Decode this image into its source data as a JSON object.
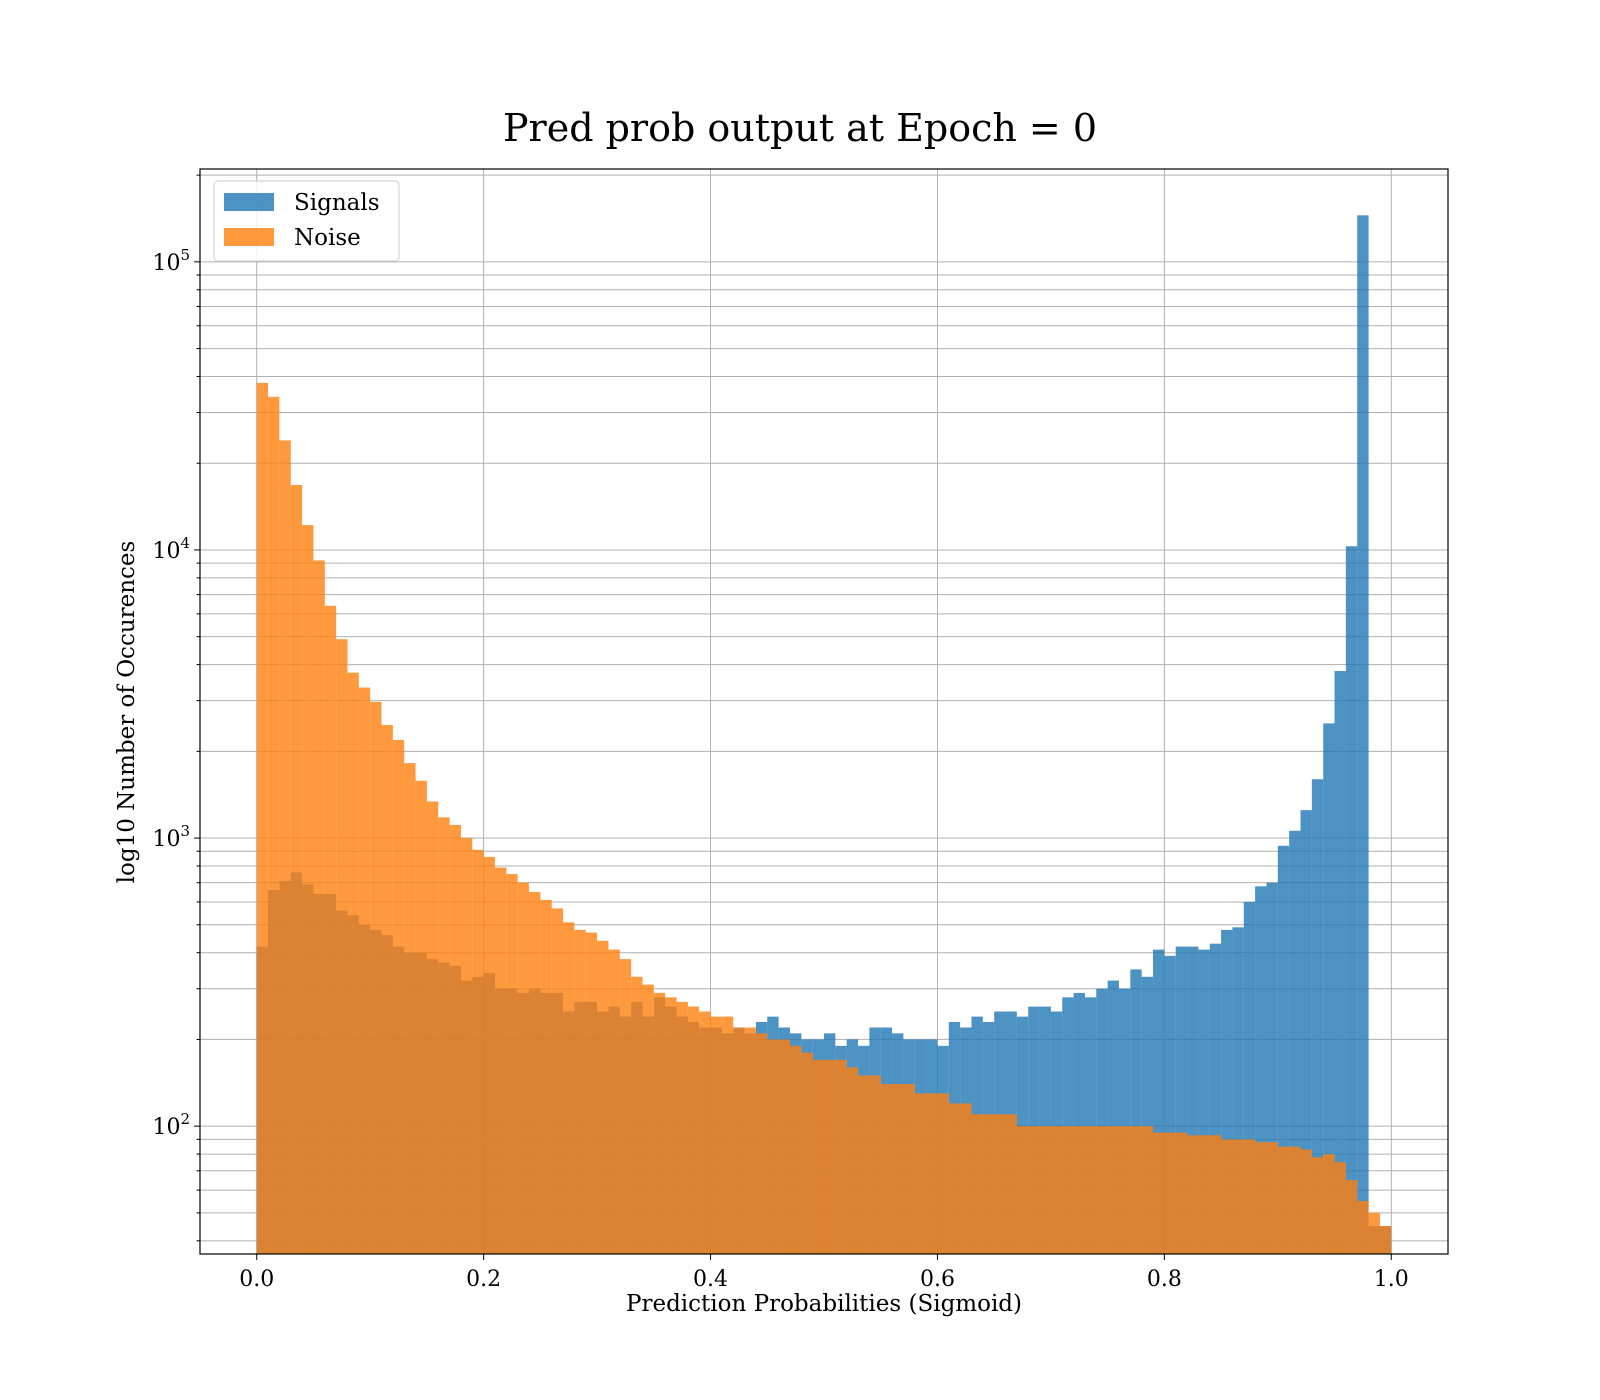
{
  "chart_data": {
    "type": "bar",
    "title": "Pred prob output at Epoch = 0",
    "xlabel": "Prediction Probabilities (Sigmoid)",
    "ylabel": "log10 Number of Occurences",
    "x_scale": "linear",
    "y_scale": "log",
    "xlim": [
      -0.05,
      1.05
    ],
    "ylim": [
      36,
      210000
    ],
    "grid": true,
    "legend_placement": "top-left",
    "bins": {
      "start": 0.0,
      "end": 1.0,
      "count": 100
    },
    "x_ticks": [
      {
        "value": 0.0,
        "label": "0.0"
      },
      {
        "value": 0.2,
        "label": "0.2"
      },
      {
        "value": 0.4,
        "label": "0.4"
      },
      {
        "value": 0.6,
        "label": "0.6"
      },
      {
        "value": 0.8,
        "label": "0.8"
      },
      {
        "value": 1.0,
        "label": "1.0"
      }
    ],
    "y_ticks": [
      {
        "value": 100,
        "base": "10",
        "exp": "2"
      },
      {
        "value": 1000,
        "base": "10",
        "exp": "3"
      },
      {
        "value": 10000,
        "base": "10",
        "exp": "4"
      },
      {
        "value": 100000,
        "base": "10",
        "exp": "5"
      }
    ],
    "series": [
      {
        "name": "Signals",
        "color": "#1f77b4",
        "opacity": 0.8,
        "values": [
          420,
          660,
          710,
          760,
          690,
          640,
          640,
          560,
          540,
          500,
          480,
          460,
          420,
          400,
          400,
          380,
          370,
          360,
          320,
          330,
          340,
          300,
          300,
          290,
          300,
          290,
          290,
          250,
          270,
          270,
          250,
          260,
          240,
          270,
          240,
          280,
          260,
          240,
          230,
          220,
          220,
          210,
          220,
          210,
          230,
          240,
          220,
          210,
          200,
          200,
          210,
          190,
          200,
          190,
          220,
          220,
          210,
          200,
          200,
          200,
          190,
          230,
          220,
          240,
          230,
          250,
          250,
          240,
          260,
          260,
          250,
          280,
          290,
          280,
          300,
          320,
          300,
          350,
          330,
          410,
          390,
          420,
          420,
          410,
          430,
          480,
          490,
          600,
          680,
          700,
          940,
          1060,
          1250,
          1600,
          2500,
          3800,
          10300,
          145000,
          45,
          45
        ]
      },
      {
        "name": "Noise",
        "color": "#ff7f0e",
        "opacity": 0.8,
        "values": [
          38000,
          34000,
          24000,
          16800,
          12200,
          9200,
          6400,
          4900,
          3750,
          3330,
          2970,
          2470,
          2190,
          1820,
          1580,
          1340,
          1180,
          1110,
          1000,
          910,
          860,
          790,
          750,
          700,
          650,
          610,
          570,
          510,
          480,
          470,
          440,
          410,
          380,
          330,
          310,
          290,
          280,
          270,
          260,
          250,
          240,
          240,
          220,
          220,
          210,
          200,
          200,
          190,
          180,
          170,
          170,
          170,
          160,
          150,
          150,
          140,
          140,
          140,
          130,
          130,
          130,
          120,
          120,
          110,
          110,
          110,
          110,
          100,
          100,
          100,
          100,
          100,
          100,
          100,
          100,
          100,
          100,
          100,
          100,
          95,
          95,
          95,
          93,
          93,
          93,
          90,
          90,
          90,
          88,
          88,
          85,
          85,
          83,
          78,
          80,
          75,
          65,
          55,
          50,
          45
        ]
      }
    ]
  }
}
